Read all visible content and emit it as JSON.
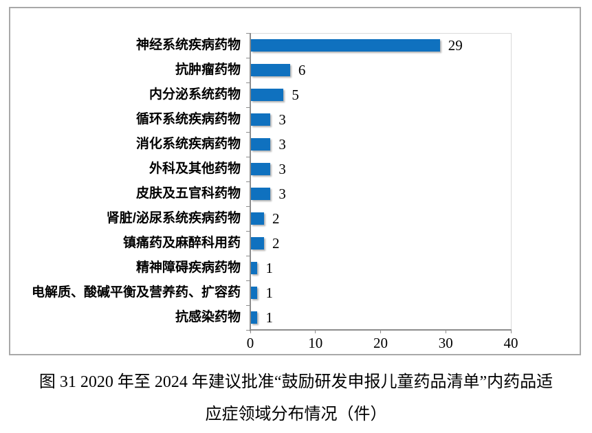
{
  "figure": {
    "caption_line1": "图 31  2020 年至 2024 年建议批准“鼓励研发申报儿童药品清单”内药品适",
    "caption_line2": "应症领域分布情况（件）"
  },
  "chart_data": {
    "type": "bar",
    "orientation": "horizontal",
    "title": "",
    "xlabel": "",
    "ylabel": "",
    "categories": [
      "神经系统疾病药物",
      "抗肿瘤药物",
      "内分泌系统药物",
      "循环系统疾病药物",
      "消化系统疾病药物",
      "外科及其他药物",
      "皮肤及五官科药物",
      "肾脏/泌尿系统疾病药物",
      "镇痛药及麻醉科用药",
      "精神障碍疾病药物",
      "电解质、酸碱平衡及营养药、扩容药",
      "抗感染药物"
    ],
    "values": [
      29,
      6,
      5,
      3,
      3,
      3,
      3,
      2,
      2,
      1,
      1,
      1
    ],
    "data_labels": [
      "29",
      "6",
      "5",
      "3",
      "3",
      "3",
      "3",
      "2",
      "2",
      "1",
      "1",
      "1"
    ],
    "x_ticks": [
      0,
      10,
      20,
      30,
      40
    ],
    "x_tick_labels": [
      "0",
      "10",
      "20",
      "30",
      "40"
    ],
    "xlim": [
      0,
      40
    ],
    "grid": false,
    "legend": false,
    "bar_color": "#0f71bf",
    "axis_color": "#8c8c8c",
    "plot_border_color": "#d9d9d9",
    "frame_border_color": "#a8a8a8"
  }
}
